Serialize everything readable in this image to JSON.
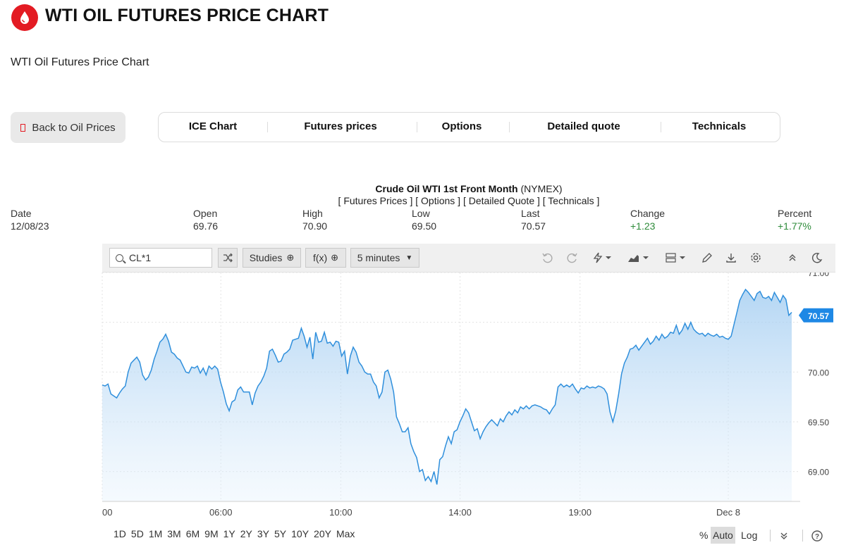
{
  "header": {
    "title": "WTI OIL FUTURES PRICE CHART",
    "subtitle": "WTI Oil Futures Price Chart",
    "back_label": "Back to Oil Prices"
  },
  "nav": {
    "tabs": [
      "ICE Chart",
      "Futures prices",
      "Options",
      "Detailed quote",
      "Technicals"
    ]
  },
  "chart_header": {
    "title": "Crude Oil WTI 1st Front Month",
    "exchange": "(NYMEX)",
    "links": "[ Futures Prices ] [ Options ] [ Detailed Quote ] [ Technicals ]"
  },
  "quote": {
    "labels": [
      "Date",
      "Open",
      "High",
      "Low",
      "Last",
      "Change",
      "Percent"
    ],
    "values": [
      "12/08/23",
      "69.76",
      "70.90",
      "69.50",
      "70.57",
      "+1.23",
      "+1.77%"
    ]
  },
  "toolbar": {
    "symbol": "CL*1",
    "studies_label": "Studies",
    "fx_label": "f(x)",
    "interval_label": "5 minutes",
    "icons": [
      "undo-icon",
      "redo-icon",
      "lightning-icon",
      "chart-type-icon",
      "layout-icon",
      "pencil-icon",
      "download-icon",
      "gear-icon",
      "collapse-icon",
      "moon-icon"
    ]
  },
  "footer": {
    "periods": [
      "1D",
      "5D",
      "1M",
      "3M",
      "6M",
      "9M",
      "1Y",
      "2Y",
      "3Y",
      "5Y",
      "10Y",
      "20Y",
      "Max"
    ],
    "scale_options": [
      "%",
      "Auto",
      "Log"
    ],
    "active_scale": "Auto"
  },
  "colors": {
    "brand": "#e31b23",
    "line": "#2f8fdc",
    "positive": "#2e8b3a",
    "badge": "#1e88e5"
  },
  "chart_data": {
    "type": "area",
    "series": [
      {
        "values": [
          69.87,
          69.86,
          69.88,
          69.78,
          69.76,
          69.74,
          69.79,
          69.83,
          69.86,
          70.0,
          70.09,
          70.12,
          70.15,
          70.1,
          69.97,
          69.92,
          69.95,
          70.02,
          70.13,
          70.21,
          70.3,
          70.33,
          70.38,
          70.31,
          70.2,
          70.18,
          70.14,
          70.12,
          70.06,
          70.0,
          69.99,
          70.05,
          70.04,
          70.06,
          69.99,
          70.04,
          69.97,
          70.06,
          70.03,
          70.06,
          70.03,
          69.9,
          69.8,
          69.68,
          69.61,
          69.7,
          69.72,
          69.82,
          69.85,
          69.8,
          69.8,
          69.8,
          69.67,
          69.79,
          69.86,
          69.9,
          69.96,
          70.04,
          70.21,
          70.23,
          70.17,
          70.1,
          70.11,
          70.18,
          70.2,
          70.23,
          70.32,
          70.33,
          70.34,
          70.44,
          70.36,
          70.25,
          70.35,
          70.13,
          70.4,
          70.3,
          70.31,
          70.4,
          70.29,
          70.3,
          70.26,
          70.31,
          70.3,
          70.16,
          70.21,
          69.98,
          70.16,
          70.25,
          70.2,
          70.1,
          70.06,
          70.0,
          69.98,
          69.98,
          69.9,
          69.86,
          69.74,
          69.8,
          70.0,
          70.02,
          69.93,
          69.8,
          69.55,
          69.48,
          69.4,
          69.4,
          69.44,
          69.28,
          69.2,
          69.14,
          69.0,
          69.02,
          68.91,
          68.95,
          68.9,
          69.0,
          68.87,
          69.12,
          69.15,
          69.26,
          69.35,
          69.28,
          69.4,
          69.42,
          69.5,
          69.56,
          69.63,
          69.59,
          69.5,
          69.41,
          69.43,
          69.33,
          69.4,
          69.45,
          69.49,
          69.52,
          69.49,
          69.46,
          69.53,
          69.5,
          69.56,
          69.6,
          69.57,
          69.62,
          69.59,
          69.65,
          69.63,
          69.66,
          69.63,
          69.66,
          69.67,
          69.66,
          69.65,
          69.63,
          69.62,
          69.58,
          69.63,
          69.67,
          69.85,
          69.88,
          69.85,
          69.87,
          69.85,
          69.88,
          69.83,
          69.79,
          69.84,
          69.83,
          69.86,
          69.84,
          69.85,
          69.84,
          69.86,
          69.85,
          69.83,
          69.78,
          69.6,
          69.5,
          69.61,
          69.78,
          69.98,
          70.09,
          70.15,
          70.23,
          70.24,
          70.27,
          70.22,
          70.26,
          70.3,
          70.34,
          70.28,
          70.31,
          70.36,
          70.32,
          70.38,
          70.34,
          70.36,
          70.4,
          70.39,
          70.47,
          70.38,
          70.42,
          70.49,
          70.43,
          70.5,
          70.43,
          70.4,
          70.38,
          70.39,
          70.36,
          70.39,
          70.37,
          70.36,
          70.38,
          70.35,
          70.36,
          70.34,
          70.33,
          70.36,
          70.48,
          70.6,
          70.72,
          70.78,
          70.83,
          70.8,
          70.76,
          70.72,
          70.79,
          70.81,
          70.75,
          70.74,
          70.76,
          70.72,
          70.8,
          70.75,
          70.7,
          70.77,
          70.73,
          70.57,
          70.6
        ]
      }
    ],
    "x_ticks": [
      "00",
      "06:00",
      "10:00",
      "14:00",
      "19:00",
      "Dec 8"
    ],
    "y_ticks": [
      "69.00",
      "69.50",
      "70.00",
      "71.00"
    ],
    "ylim": [
      68.7,
      71.0
    ],
    "last_value": "70.57",
    "grid": true
  }
}
